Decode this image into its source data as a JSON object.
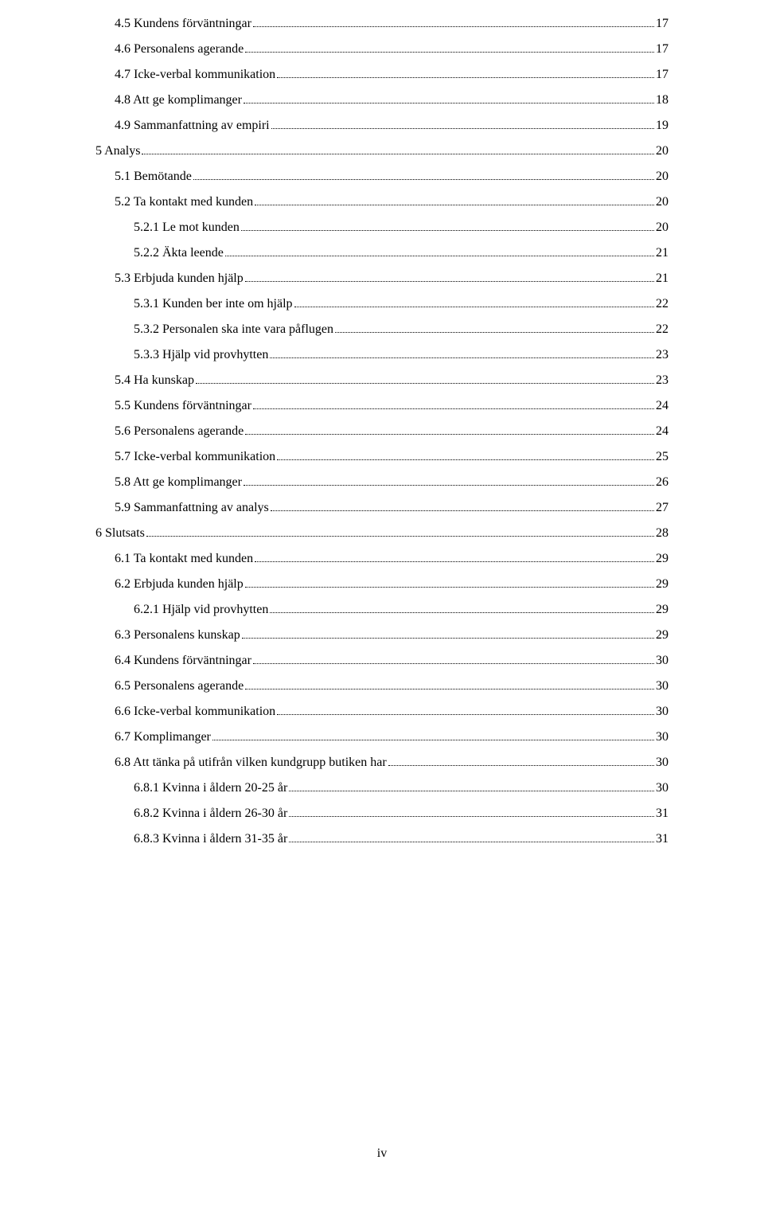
{
  "page_label": "iv",
  "toc": [
    {
      "indent": 1,
      "title": "4.5 Kundens förväntningar",
      "page": "17"
    },
    {
      "indent": 1,
      "title": "4.6 Personalens agerande",
      "page": "17"
    },
    {
      "indent": 1,
      "title": "4.7 Icke-verbal kommunikation",
      "page": "17"
    },
    {
      "indent": 1,
      "title": "4.8 Att ge komplimanger",
      "page": "18"
    },
    {
      "indent": 1,
      "title": "4.9 Sammanfattning av empiri",
      "page": "19"
    },
    {
      "indent": 0,
      "title": "5 Analys",
      "page": "20"
    },
    {
      "indent": 1,
      "title": "5.1 Bemötande",
      "page": "20"
    },
    {
      "indent": 1,
      "title": "5.2 Ta kontakt med kunden",
      "page": "20"
    },
    {
      "indent": 2,
      "title": "5.2.1 Le mot kunden",
      "page": "20"
    },
    {
      "indent": 2,
      "title": "5.2.2 Äkta leende",
      "page": "21"
    },
    {
      "indent": 1,
      "title": "5.3 Erbjuda kunden hjälp",
      "page": "21"
    },
    {
      "indent": 2,
      "title": "5.3.1 Kunden ber inte om hjälp",
      "page": "22"
    },
    {
      "indent": 2,
      "title": "5.3.2 Personalen ska inte vara påflugen",
      "page": "22"
    },
    {
      "indent": 2,
      "title": "5.3.3 Hjälp vid provhytten",
      "page": "23"
    },
    {
      "indent": 1,
      "title": "5.4 Ha kunskap",
      "page": "23"
    },
    {
      "indent": 1,
      "title": "5.5 Kundens förväntningar",
      "page": "24"
    },
    {
      "indent": 1,
      "title": "5.6 Personalens agerande",
      "page": "24"
    },
    {
      "indent": 1,
      "title": "5.7 Icke-verbal kommunikation",
      "page": "25"
    },
    {
      "indent": 1,
      "title": "5.8 Att ge komplimanger",
      "page": "26"
    },
    {
      "indent": 1,
      "title": "5.9 Sammanfattning av analys",
      "page": "27"
    },
    {
      "indent": 0,
      "title": "6 Slutsats",
      "page": "28"
    },
    {
      "indent": 1,
      "title": "6.1 Ta kontakt med kunden",
      "page": "29"
    },
    {
      "indent": 1,
      "title": "6.2 Erbjuda kunden hjälp",
      "page": "29"
    },
    {
      "indent": 2,
      "title": "6.2.1 Hjälp vid provhytten",
      "page": "29"
    },
    {
      "indent": 1,
      "title": "6.3 Personalens kunskap",
      "page": "29"
    },
    {
      "indent": 1,
      "title": "6.4 Kundens förväntningar",
      "page": "30"
    },
    {
      "indent": 1,
      "title": "6.5 Personalens agerande",
      "page": "30"
    },
    {
      "indent": 1,
      "title": "6.6 Icke-verbal kommunikation",
      "page": "30"
    },
    {
      "indent": 1,
      "title": "6.7 Komplimanger",
      "page": "30"
    },
    {
      "indent": 1,
      "title": "6.8 Att tänka på utifrån vilken kundgrupp butiken har",
      "page": "30"
    },
    {
      "indent": 2,
      "title": "6.8.1 Kvinna i åldern 20-25 år",
      "page": "30"
    },
    {
      "indent": 2,
      "title": "6.8.2 Kvinna i åldern 26-30 år",
      "page": "31"
    },
    {
      "indent": 2,
      "title": "6.8.3 Kvinna i åldern 31-35 år",
      "page": "31"
    }
  ]
}
